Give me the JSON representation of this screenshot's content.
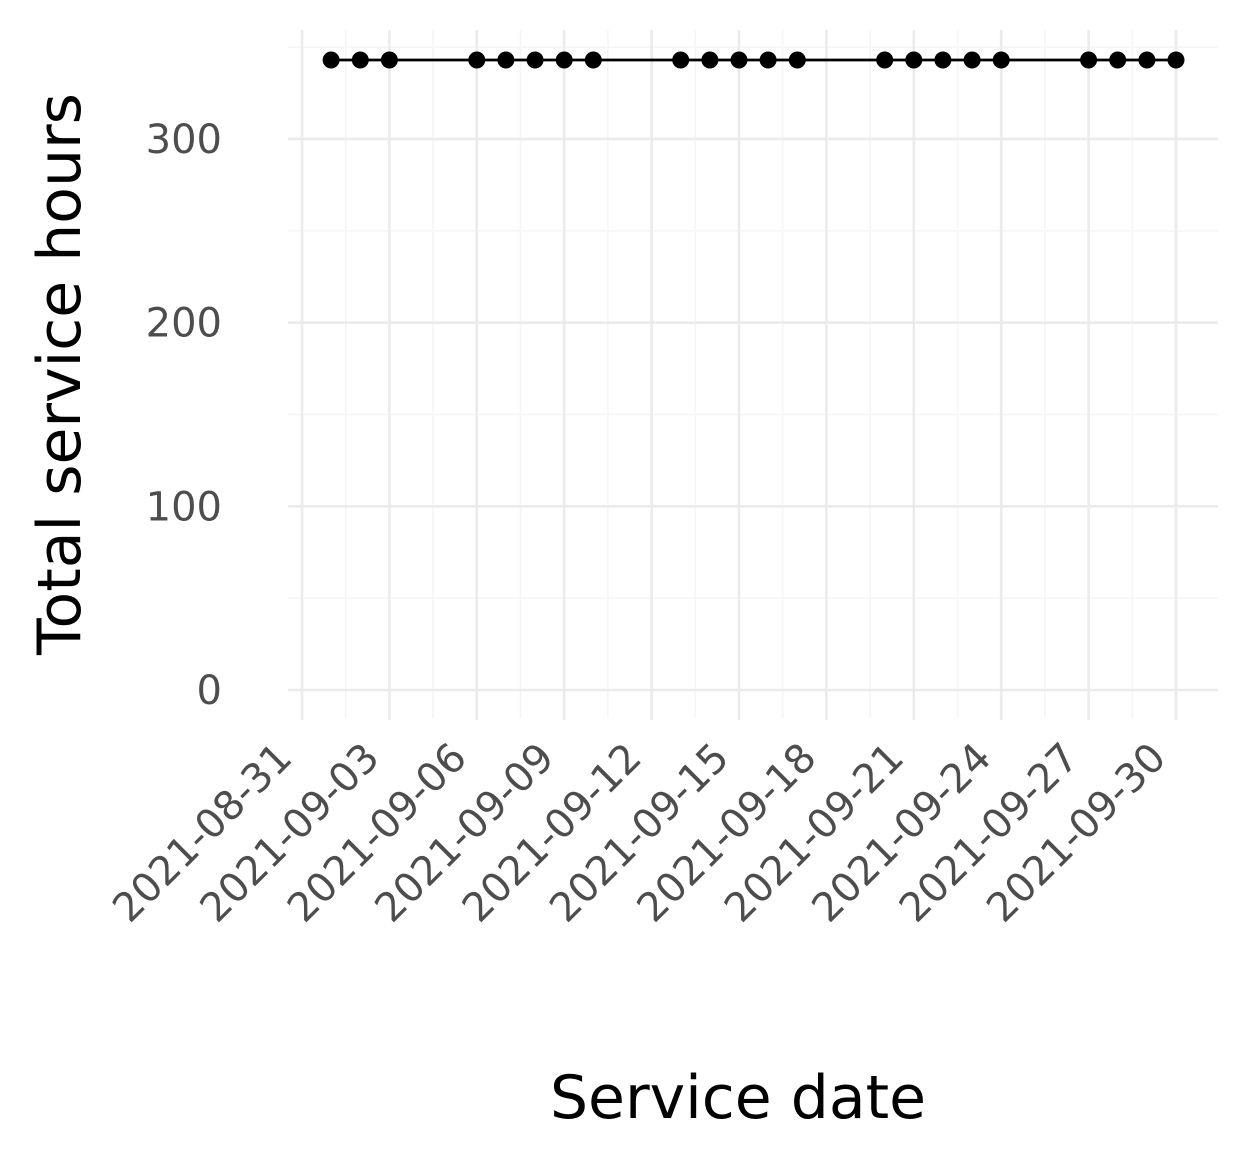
{
  "chart_data": {
    "type": "line",
    "title": "",
    "xlabel": "Service date",
    "ylabel": "Total service hours",
    "x_ticks": [
      "2021-08-31",
      "2021-09-03",
      "2021-09-06",
      "2021-09-09",
      "2021-09-12",
      "2021-09-15",
      "2021-09-18",
      "2021-09-21",
      "2021-09-24",
      "2021-09-27",
      "2021-09-30"
    ],
    "y_ticks": [
      0,
      100,
      200,
      300
    ],
    "xlim": [
      "2021-08-31",
      "2021-09-30"
    ],
    "ylim": [
      0,
      343
    ],
    "grid": true,
    "line_color": "#000000",
    "series": [
      {
        "x": [
          "2021-09-01",
          "2021-09-02",
          "2021-09-03",
          "2021-09-06",
          "2021-09-07",
          "2021-09-08",
          "2021-09-09",
          "2021-09-10",
          "2021-09-13",
          "2021-09-14",
          "2021-09-15",
          "2021-09-16",
          "2021-09-17",
          "2021-09-20",
          "2021-09-21",
          "2021-09-22",
          "2021-09-23",
          "2021-09-24",
          "2021-09-27",
          "2021-09-28",
          "2021-09-29",
          "2021-09-30"
        ],
        "values": [
          343,
          343,
          343,
          343,
          343,
          343,
          343,
          343,
          343,
          343,
          343,
          343,
          343,
          343,
          343,
          343,
          343,
          343,
          343,
          343,
          343,
          343
        ]
      }
    ]
  }
}
